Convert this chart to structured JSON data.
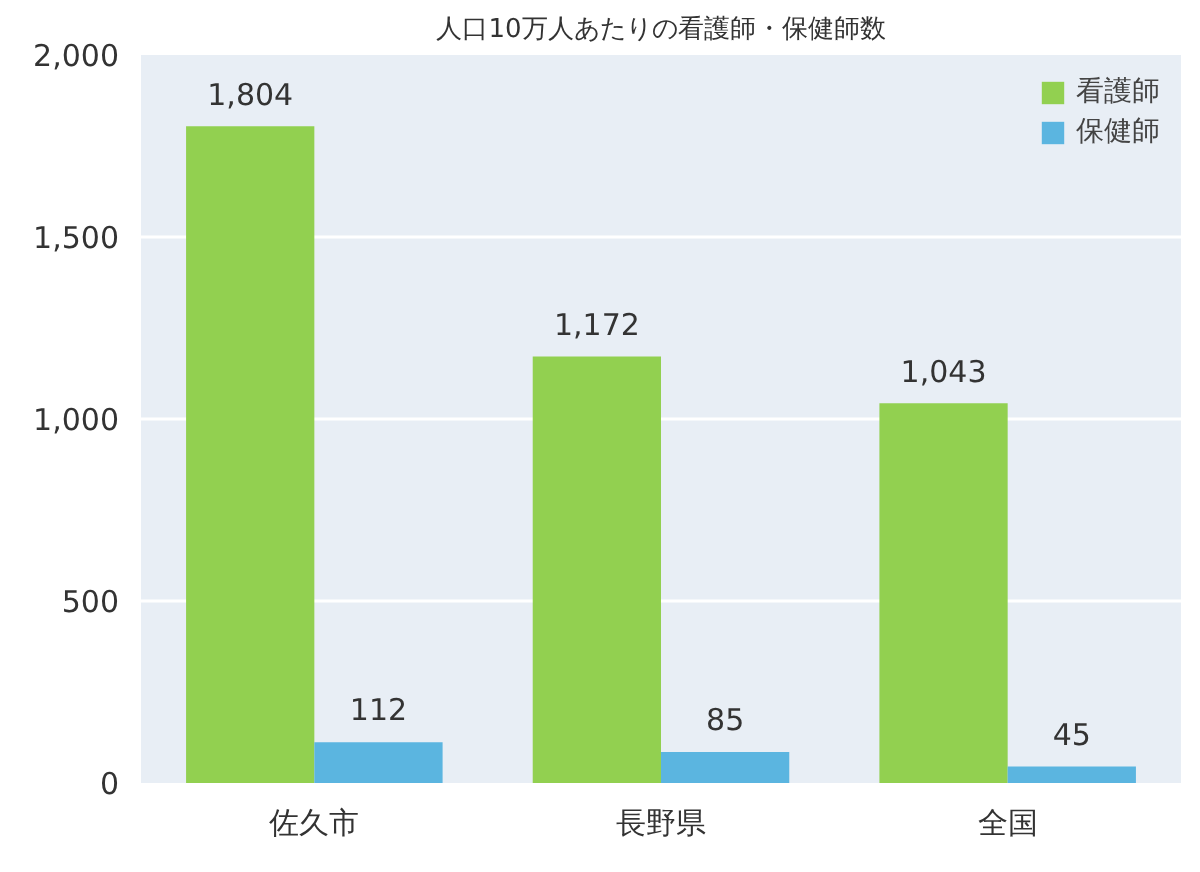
{
  "chart_data": {
    "type": "bar",
    "title": "人口10万人あたりの看護師・保健師数",
    "categories": [
      "佐久市",
      "長野県",
      "全国"
    ],
    "series": [
      {
        "name": "看護師",
        "color": "#92d050",
        "values": [
          1804,
          1172,
          1043
        ],
        "value_labels": [
          "1,804",
          "1,172",
          "1,043"
        ]
      },
      {
        "name": "保健師",
        "color": "#5bb5e0",
        "values": [
          112,
          85,
          45
        ],
        "value_labels": [
          "112",
          "85",
          "45"
        ]
      }
    ],
    "ylim": [
      0,
      2000
    ],
    "yticks": [
      0,
      500,
      {
        "value": 1000,
        "label": "1,000"
      },
      {
        "value": 1500,
        "label": "1,500"
      },
      {
        "value": 2000,
        "label": "2,000"
      }
    ],
    "grid": "y",
    "legend": "top right"
  }
}
